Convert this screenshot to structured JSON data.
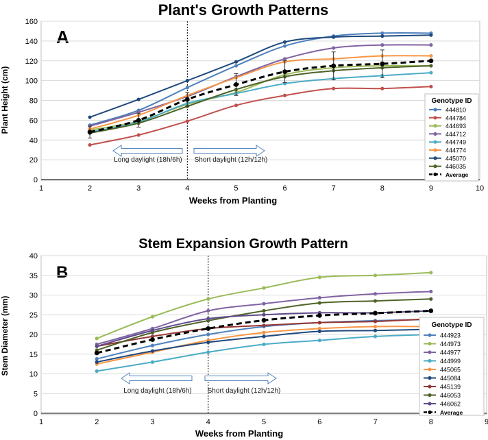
{
  "chart_data": [
    {
      "panel": "A",
      "type": "line",
      "title": "Plant's Growth Patterns",
      "xlabel": "Weeks from Planting",
      "ylabel": "Plant Height (cm)",
      "xlim": [
        1,
        10
      ],
      "ylim": [
        0,
        160
      ],
      "xticks": [
        1,
        2,
        3,
        4,
        5,
        6,
        7,
        8,
        9,
        10
      ],
      "yticks": [
        0,
        20,
        40,
        60,
        80,
        100,
        120,
        140,
        160
      ],
      "divider_x": 4,
      "arrow_left_label": "Long daylight (18h/6h)",
      "arrow_right_label": "Short daylight (12h/12h)",
      "legend_title": "Genotype ID",
      "legend_position": "right",
      "x": [
        2,
        3,
        4,
        5,
        6,
        7,
        8,
        9
      ],
      "series": [
        {
          "name": "444810",
          "color": "#4f81bd",
          "values": [
            55,
            70,
            93,
            115,
            135,
            145,
            148,
            148
          ]
        },
        {
          "name": "444784",
          "color": "#c0504d",
          "values": [
            35,
            45,
            59,
            75,
            85,
            92,
            92,
            94
          ]
        },
        {
          "name": "444693",
          "color": "#9bbb59",
          "values": [
            50,
            59,
            76,
            88,
            106,
            113,
            115,
            115
          ]
        },
        {
          "name": "444712",
          "color": "#8064a2",
          "values": [
            54,
            68,
            84,
            104,
            122,
            133,
            136,
            136
          ]
        },
        {
          "name": "444749",
          "color": "#4bacc6",
          "values": [
            48,
            58,
            77,
            87,
            97,
            102,
            105,
            108
          ]
        },
        {
          "name": "444774",
          "color": "#f79646",
          "values": [
            51,
            65,
            85,
            103,
            119,
            122,
            125,
            125
          ]
        },
        {
          "name": "445070",
          "color": "#1f497d",
          "values": [
            63,
            81,
            100,
            119,
            139,
            144,
            145,
            146
          ]
        },
        {
          "name": "446035",
          "color": "#4f6228",
          "values": [
            47,
            57,
            74,
            91,
            104,
            110,
            113,
            115
          ]
        },
        {
          "name": "Average",
          "color": "#000000",
          "dashed": true,
          "values": [
            48,
            60,
            81,
            96,
            109,
            115,
            117,
            120
          ],
          "error": [
            6,
            7,
            7,
            11,
            11,
            14,
            14,
            0
          ]
        }
      ]
    },
    {
      "panel": "B",
      "type": "line",
      "title": "Stem Expansion Growth Pattern",
      "xlabel": "Weeks from Planting",
      "ylabel": "Stem Diameter (mm)",
      "xlim": [
        1,
        9
      ],
      "ylim": [
        0,
        40
      ],
      "xticks": [
        1,
        2,
        3,
        4,
        5,
        6,
        7,
        8,
        9
      ],
      "yticks": [
        0,
        5,
        10,
        15,
        20,
        25,
        30,
        35,
        40
      ],
      "divider_x": 4,
      "arrow_left_label": "Long daylight (18h/6h)",
      "arrow_right_label": "Short daylight (12h/12h)",
      "legend_title": "Genotype ID",
      "legend_position": "right",
      "x": [
        2,
        3,
        4,
        5,
        6,
        7,
        8
      ],
      "series": [
        {
          "name": "444923",
          "color": "#4f81bd",
          "values": [
            13.8,
            17.2,
            20.0,
            22.0,
            23.0,
            23.5,
            23.8
          ]
        },
        {
          "name": "444973",
          "color": "#9bbb59",
          "values": [
            19.0,
            24.5,
            29.0,
            31.8,
            34.5,
            35.0,
            35.7
          ]
        },
        {
          "name": "444977",
          "color": "#8064a2",
          "values": [
            17.5,
            21.5,
            26.0,
            27.8,
            29.3,
            30.3,
            30.9
          ]
        },
        {
          "name": "444999",
          "color": "#4bacc6",
          "values": [
            10.7,
            13.0,
            15.5,
            17.5,
            18.5,
            19.5,
            20.0
          ]
        },
        {
          "name": "445065",
          "color": "#f79646",
          "values": [
            12.5,
            15.5,
            18.5,
            20.5,
            21.5,
            22.0,
            22.0
          ]
        },
        {
          "name": "445084",
          "color": "#1f497d",
          "values": [
            13.0,
            15.8,
            18.0,
            19.5,
            20.8,
            21.0,
            21.3
          ]
        },
        {
          "name": "445139",
          "color": "#953735",
          "values": [
            17.0,
            19.5,
            21.5,
            22.3,
            23.0,
            23.3,
            24.0
          ]
        },
        {
          "name": "446053",
          "color": "#4f6228",
          "values": [
            16.0,
            20.5,
            23.5,
            26.0,
            28.0,
            28.5,
            29.0
          ]
        },
        {
          "name": "446062",
          "color": "#5f4b8b",
          "values": [
            17.0,
            21.0,
            24.0,
            25.0,
            25.5,
            25.5,
            26.0
          ]
        },
        {
          "name": "Average",
          "color": "#000000",
          "dashed": true,
          "values": [
            15.3,
            18.7,
            21.5,
            23.6,
            24.8,
            25.4,
            26.0
          ]
        }
      ]
    }
  ]
}
